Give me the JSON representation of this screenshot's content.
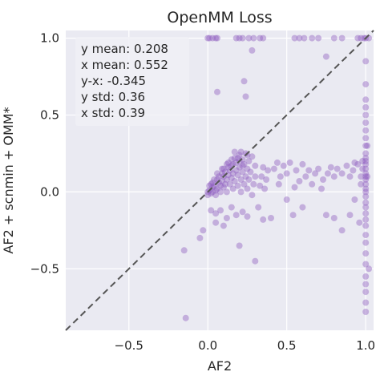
{
  "chart_data": {
    "type": "scatter",
    "title": "OpenMM Loss",
    "xlabel": "AF2",
    "ylabel": "AF2 + scnmin + OMM*",
    "xlim": [
      -0.9,
      1.05
    ],
    "ylim": [
      -0.9,
      1.05
    ],
    "xticks": [
      -0.5,
      0.0,
      0.5,
      1.0
    ],
    "yticks": [
      -0.5,
      0.0,
      0.5,
      1.0
    ],
    "xtick_labels": [
      "−0.5",
      "0.0",
      "0.5",
      "1.0"
    ],
    "ytick_labels": [
      "−0.5",
      "0.0",
      "0.5",
      "1.0"
    ],
    "grid": true,
    "diagonal": "y = x (dashed)",
    "point_color": "#8c5bbf",
    "background_color": "#eaeaf2",
    "stats": [
      "y mean: 0.208",
      "x mean: 0.552",
      "y-x: -0.345",
      "y std: 0.36",
      "x std: 0.39"
    ],
    "stats_placement": "top-left",
    "points": [
      [
        0.0,
        1.0
      ],
      [
        0.01,
        1.0
      ],
      [
        0.03,
        1.0
      ],
      [
        0.05,
        1.0
      ],
      [
        0.06,
        1.0
      ],
      [
        0.18,
        1.0
      ],
      [
        0.2,
        1.0
      ],
      [
        0.22,
        1.0
      ],
      [
        0.26,
        1.0
      ],
      [
        0.29,
        1.0
      ],
      [
        0.33,
        1.0
      ],
      [
        0.35,
        1.0
      ],
      [
        0.55,
        1.0
      ],
      [
        0.58,
        1.0
      ],
      [
        0.61,
        1.0
      ],
      [
        0.66,
        1.0
      ],
      [
        0.7,
        1.0
      ],
      [
        0.8,
        1.0
      ],
      [
        0.85,
        1.0
      ],
      [
        0.95,
        1.0
      ],
      [
        0.97,
        1.0
      ],
      [
        0.99,
        1.0
      ],
      [
        1.0,
        1.0
      ],
      [
        1.02,
        1.0
      ],
      [
        0.23,
        0.72
      ],
      [
        0.24,
        0.62
      ],
      [
        0.28,
        0.92
      ],
      [
        0.75,
        0.88
      ],
      [
        0.06,
        0.65
      ],
      [
        1.0,
        0.85
      ],
      [
        1.0,
        0.7
      ],
      [
        1.0,
        0.6
      ],
      [
        1.0,
        0.55
      ],
      [
        1.0,
        0.5
      ],
      [
        1.0,
        0.45
      ],
      [
        1.0,
        0.4
      ],
      [
        1.0,
        0.35
      ],
      [
        1.0,
        0.3
      ],
      [
        1.0,
        0.25
      ],
      [
        1.0,
        0.22
      ],
      [
        1.0,
        0.2
      ],
      [
        1.0,
        0.18
      ],
      [
        1.0,
        0.15
      ],
      [
        1.0,
        0.12
      ],
      [
        1.0,
        0.1
      ],
      [
        1.0,
        0.08
      ],
      [
        1.0,
        0.05
      ],
      [
        1.0,
        0.02
      ],
      [
        1.0,
        0.0
      ],
      [
        1.0,
        -0.03
      ],
      [
        1.0,
        -0.07
      ],
      [
        1.0,
        -0.1
      ],
      [
        1.0,
        -0.14
      ],
      [
        1.0,
        -0.18
      ],
      [
        1.0,
        -0.22
      ],
      [
        1.0,
        -0.28
      ],
      [
        1.0,
        -0.33
      ],
      [
        1.0,
        -0.4
      ],
      [
        1.0,
        -0.47
      ],
      [
        1.0,
        -0.55
      ],
      [
        1.0,
        -0.6
      ],
      [
        1.0,
        -0.65
      ],
      [
        1.0,
        -0.72
      ],
      [
        1.0,
        -0.78
      ],
      [
        1.01,
        0.3
      ],
      [
        1.01,
        0.1
      ],
      [
        1.02,
        -0.5
      ],
      [
        0.98,
        0.2
      ],
      [
        0.98,
        0.15
      ],
      [
        0.97,
        0.1
      ],
      [
        0.97,
        0.05
      ],
      [
        0.96,
        -0.2
      ],
      [
        0.95,
        0.18
      ],
      [
        0.93,
        0.19
      ],
      [
        0.93,
        -0.05
      ],
      [
        0.92,
        0.14
      ],
      [
        0.9,
        0.1
      ],
      [
        0.9,
        -0.15
      ],
      [
        0.88,
        0.17
      ],
      [
        0.85,
        0.12
      ],
      [
        0.85,
        -0.25
      ],
      [
        0.82,
        0.15
      ],
      [
        0.8,
        0.1
      ],
      [
        0.8,
        -0.17
      ],
      [
        0.78,
        0.16
      ],
      [
        0.76,
        0.12
      ],
      [
        0.75,
        -0.15
      ],
      [
        0.73,
        0.08
      ],
      [
        0.72,
        0.02
      ],
      [
        0.7,
        0.15
      ],
      [
        0.68,
        0.12
      ],
      [
        0.66,
        0.05
      ],
      [
        0.64,
        0.14
      ],
      [
        0.62,
        0.1
      ],
      [
        0.6,
        0.18
      ],
      [
        0.6,
        -0.1
      ],
      [
        0.58,
        0.07
      ],
      [
        0.56,
        0.14
      ],
      [
        0.55,
        0.03
      ],
      [
        0.54,
        -0.15
      ],
      [
        0.52,
        0.19
      ],
      [
        0.5,
        0.12
      ],
      [
        0.5,
        -0.05
      ],
      [
        0.48,
        0.17
      ],
      [
        0.46,
        0.1
      ],
      [
        0.45,
        0.05
      ],
      [
        0.44,
        0.19
      ],
      [
        0.42,
        0.15
      ],
      [
        0.4,
        -0.17
      ],
      [
        0.38,
        0.14
      ],
      [
        0.37,
        0.08
      ],
      [
        0.36,
        0.02
      ],
      [
        0.35,
        0.16
      ],
      [
        0.35,
        -0.18
      ],
      [
        0.34,
        0.1
      ],
      [
        0.33,
        0.04
      ],
      [
        0.32,
        -0.1
      ],
      [
        0.3,
        0.17
      ],
      [
        0.3,
        0.1
      ],
      [
        0.29,
        0.05
      ],
      [
        0.28,
        -0.02
      ],
      [
        0.28,
        0.23
      ],
      [
        0.27,
        0.13
      ],
      [
        0.26,
        0.08
      ],
      [
        0.26,
        0.2
      ],
      [
        0.25,
        0.15
      ],
      [
        0.25,
        0.02
      ],
      [
        0.24,
        0.1
      ],
      [
        0.24,
        0.25
      ],
      [
        0.23,
        0.18
      ],
      [
        0.23,
        0.05
      ],
      [
        0.22,
        0.13
      ],
      [
        0.22,
        0.21
      ],
      [
        0.21,
        0.08
      ],
      [
        0.21,
        0.0
      ],
      [
        0.2,
        0.16
      ],
      [
        0.2,
        0.24
      ],
      [
        0.19,
        0.11
      ],
      [
        0.19,
        0.04
      ],
      [
        0.18,
        0.19
      ],
      [
        0.18,
        0.14
      ],
      [
        0.17,
        0.07
      ],
      [
        0.17,
        0.22
      ],
      [
        0.16,
        0.12
      ],
      [
        0.16,
        0.02
      ],
      [
        0.15,
        0.17
      ],
      [
        0.15,
        0.09
      ],
      [
        0.14,
        0.05
      ],
      [
        0.14,
        0.14
      ],
      [
        0.13,
        0.11
      ],
      [
        0.13,
        0.19
      ],
      [
        0.12,
        0.08
      ],
      [
        0.12,
        0.0
      ],
      [
        0.11,
        0.13
      ],
      [
        0.11,
        0.05
      ],
      [
        0.1,
        0.1
      ],
      [
        0.1,
        0.03
      ],
      [
        0.09,
        0.07
      ],
      [
        0.09,
        0.12
      ],
      [
        0.08,
        0.04
      ],
      [
        0.08,
        0.0
      ],
      [
        0.07,
        0.06
      ],
      [
        0.06,
        0.02
      ],
      [
        0.06,
        0.08
      ],
      [
        0.05,
        0.01
      ],
      [
        0.05,
        -0.02
      ],
      [
        0.04,
        0.04
      ],
      [
        0.03,
        0.0
      ],
      [
        0.03,
        0.03
      ],
      [
        0.02,
        -0.01
      ],
      [
        0.01,
        0.01
      ],
      [
        0.0,
        0.0
      ],
      [
        0.0,
        -0.02
      ],
      [
        0.02,
        0.05
      ],
      [
        0.04,
        0.08
      ],
      [
        0.07,
        0.1
      ],
      [
        0.1,
        0.15
      ],
      [
        0.13,
        0.16
      ],
      [
        0.16,
        0.18
      ],
      [
        0.2,
        0.2
      ],
      [
        0.22,
        0.17
      ],
      [
        0.19,
        0.22
      ],
      [
        0.15,
        0.21
      ],
      [
        0.12,
        0.18
      ],
      [
        0.17,
        0.26
      ],
      [
        0.21,
        0.26
      ],
      [
        0.25,
        0.24
      ],
      [
        0.09,
        0.15
      ],
      [
        0.06,
        0.12
      ],
      [
        0.03,
        0.06
      ],
      [
        0.01,
        0.04
      ],
      [
        0.02,
        -0.12
      ],
      [
        0.05,
        -0.14
      ],
      [
        0.08,
        -0.12
      ],
      [
        0.12,
        -0.17
      ],
      [
        0.15,
        -0.1
      ],
      [
        0.18,
        -0.15
      ],
      [
        0.22,
        -0.13
      ],
      [
        0.25,
        -0.16
      ],
      [
        0.05,
        -0.2
      ],
      [
        0.1,
        -0.22
      ],
      [
        0.3,
        -0.45
      ],
      [
        0.2,
        -0.35
      ],
      [
        -0.05,
        -0.3
      ],
      [
        -0.03,
        -0.25
      ],
      [
        -0.15,
        -0.38
      ],
      [
        -0.14,
        -0.82
      ]
    ]
  }
}
